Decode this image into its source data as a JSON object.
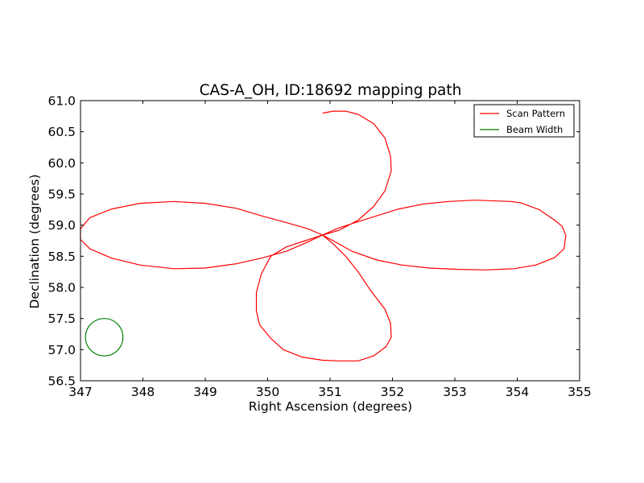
{
  "chart_data": {
    "type": "line",
    "title": "CAS-A_OH, ID:18692 mapping path",
    "xlabel": "Right Ascension (degrees)",
    "ylabel": "Declination (degrees)",
    "xlim": [
      347,
      355
    ],
    "ylim": [
      56.5,
      61.0
    ],
    "x_ticks": [
      "347",
      "348",
      "349",
      "350",
      "351",
      "352",
      "353",
      "354",
      "355"
    ],
    "y_ticks": [
      "56.5",
      "57.0",
      "57.5",
      "58.0",
      "58.5",
      "59.0",
      "59.5",
      "60.0",
      "60.5",
      "61.0"
    ],
    "grid": false,
    "legend_position": "top-right",
    "colors": {
      "scan": "#ff0000",
      "beam": "#008000"
    },
    "series": [
      {
        "name": "Scan Pattern",
        "x": [
          350.88,
          351.05,
          351.35,
          351.75,
          352.15,
          352.6,
          353.05,
          353.5,
          353.95,
          354.3,
          354.6,
          354.75,
          354.78,
          354.72,
          354.6,
          354.35,
          354.05,
          353.9,
          353.9,
          353.35,
          353.3,
          352.9,
          352.5,
          352.1,
          351.75,
          351.4,
          351.1,
          350.88,
          350.65,
          350.3,
          349.9,
          349.5,
          349.0,
          348.5,
          347.95,
          347.5,
          347.15,
          347.0,
          347.0,
          347.15,
          347.5,
          347.95,
          348.5,
          349.0,
          349.5,
          349.9,
          350.3,
          350.6,
          350.88,
          351.05,
          351.25,
          351.45,
          351.65,
          351.88,
          351.97,
          351.98,
          351.9,
          351.7,
          351.45,
          351.15,
          350.88,
          350.55,
          350.25,
          350.05,
          349.87,
          349.82,
          349.82,
          349.9,
          350.05,
          350.3,
          350.6,
          350.88,
          351.15,
          351.45,
          351.7,
          351.88,
          351.98,
          351.97,
          351.88,
          351.7,
          351.45,
          351.25,
          351.05,
          350.88
        ],
        "y": [
          58.84,
          58.75,
          58.58,
          58.44,
          58.36,
          58.31,
          58.29,
          58.28,
          58.3,
          58.36,
          58.48,
          58.62,
          58.83,
          58.98,
          59.08,
          59.25,
          59.36,
          59.38,
          59.38,
          59.4,
          59.4,
          59.38,
          59.34,
          59.26,
          59.15,
          59.04,
          58.94,
          58.84,
          58.94,
          59.04,
          59.15,
          59.27,
          59.35,
          59.38,
          59.35,
          59.26,
          59.12,
          58.94,
          58.77,
          58.62,
          58.47,
          58.36,
          58.3,
          58.31,
          58.38,
          58.47,
          58.58,
          58.71,
          58.84,
          58.7,
          58.5,
          58.25,
          57.95,
          57.65,
          57.42,
          57.2,
          57.05,
          56.9,
          56.82,
          56.82,
          56.83,
          56.88,
          57.0,
          57.18,
          57.4,
          57.62,
          57.92,
          58.22,
          58.5,
          58.65,
          58.75,
          58.84,
          58.92,
          59.08,
          59.3,
          59.55,
          59.87,
          60.1,
          60.4,
          60.63,
          60.78,
          60.83,
          60.83,
          60.8
        ]
      },
      {
        "name": "Beam Width",
        "shape": "circle",
        "center": [
          347.38,
          57.2
        ],
        "radius": 0.3
      }
    ]
  }
}
